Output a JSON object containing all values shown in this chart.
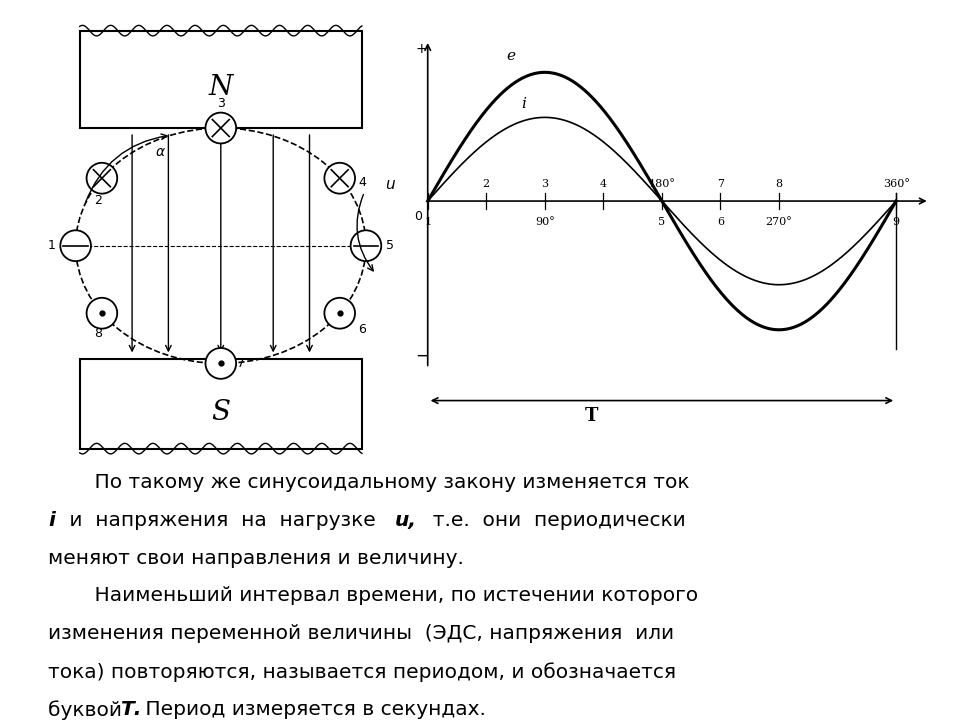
{
  "bg_color": "#ffffff",
  "e_amplitude": 1.0,
  "i_amplitude": 0.65,
  "top_labels": {
    "2": 0.125,
    "3": 0.25,
    "4": 0.375,
    "180°": 0.5,
    "7": 0.625,
    "8": 0.75,
    "360°": 1.0
  },
  "bottom_labels": {
    "1": 0.0,
    "90°": 0.25,
    "5": 0.5,
    "6": 0.625,
    "270°": 0.75,
    "9": 1.0
  },
  "period_label": "T",
  "e_label": "e",
  "i_label": "i",
  "plus_label": "+",
  "text_para1_line1": "    По такому же синусоидальному закону изменяется ток",
  "text_para1_line2_normal1": " и  напряжения  на  нагрузке ",
  "text_para1_line2_bi": "u,",
  "text_para1_line2_normal2": "  т.е.  они  периодически",
  "text_para1_line3": "меняют свои направления и величину.",
  "text_para2_line1": "    Наименьший интервал времени, по истечении которого",
  "text_para2_line2": "изменения переменной величины  (ЭДС, напряжения  или",
  "text_para2_line3": "тока) повторяются, называется периодом, и обозначается",
  "text_para2_line4_normal1": "буквой ",
  "text_para2_line4_bi": "Т.",
  "text_para2_line4_normal2": " Период измеряется в секундах."
}
